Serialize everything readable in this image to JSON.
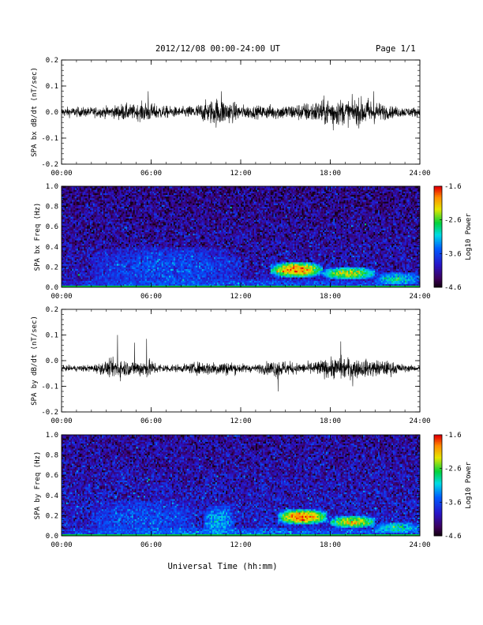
{
  "header": {
    "title": "2012/12/08  00:00-24:00 UT",
    "page": "Page 1/1"
  },
  "footer": {
    "xlabel": "Universal Time (hh:mm)"
  },
  "chart_data": [
    {
      "type": "line",
      "ylabel": "SPA bx dB/dt (nT/sec)",
      "xlim": [
        0,
        24
      ],
      "ylim": [
        -0.2,
        0.2
      ],
      "xticks": [
        "00:00",
        "06:00",
        "12:00",
        "18:00",
        "24:00"
      ],
      "yticks": [
        "-0.2",
        "-0.1",
        "0.0",
        "0.1",
        "0.2"
      ],
      "baseline": 0.0,
      "envelope": {
        "x": [
          0,
          2,
          3.5,
          4,
          5,
          5.7,
          6,
          7,
          8,
          9,
          10,
          10.5,
          11,
          12,
          13,
          14,
          15,
          16,
          17,
          18,
          19,
          20,
          20.5,
          21,
          22,
          23,
          24
        ],
        "amp": [
          0.02,
          0.02,
          0.025,
          0.035,
          0.03,
          0.045,
          0.035,
          0.025,
          0.02,
          0.03,
          0.05,
          0.06,
          0.05,
          0.03,
          0.025,
          0.03,
          0.03,
          0.035,
          0.045,
          0.06,
          0.05,
          0.055,
          0.06,
          0.045,
          0.025,
          0.02,
          0.02
        ]
      },
      "spikes": [
        {
          "x": 5.8,
          "y": 0.08
        },
        {
          "x": 10.7,
          "y": 0.08
        },
        {
          "x": 18.2,
          "y": -0.07
        },
        {
          "x": 20.9,
          "y": 0.08
        }
      ]
    },
    {
      "type": "heatmap",
      "ylabel": "SPA bx Freq (Hz)",
      "xlim": [
        0,
        24
      ],
      "ylim": [
        0,
        1.0
      ],
      "xticks": [
        "00:00",
        "06:00",
        "12:00",
        "18:00",
        "24:00"
      ],
      "yticks": [
        "0.0",
        "0.2",
        "0.4",
        "0.6",
        "0.8",
        "1.0"
      ],
      "colorbar": {
        "min": -4.6,
        "max": -1.6,
        "ticks": [
          "-1.6",
          "-2.6",
          "-3.6",
          "-4.6"
        ],
        "label": "Log10 Power"
      },
      "background_level": -4.1,
      "features": [
        {
          "t0": 0,
          "t1": 24,
          "f0": 0.0,
          "f1": 0.08,
          "level": -3.6
        },
        {
          "t0": 14,
          "t1": 17.5,
          "f0": 0.1,
          "f1": 0.25,
          "level": -1.9
        },
        {
          "t0": 17.5,
          "t1": 21,
          "f0": 0.08,
          "f1": 0.2,
          "level": -2.3
        },
        {
          "t0": 21,
          "t1": 24,
          "f0": 0.03,
          "f1": 0.15,
          "level": -3.0
        },
        {
          "t0": 2,
          "t1": 12,
          "f0": 0.0,
          "f1": 0.4,
          "level": -3.6
        }
      ]
    },
    {
      "type": "line",
      "ylabel": "SPA by dB/dt (nT/sec)",
      "xlim": [
        0,
        24
      ],
      "ylim": [
        -0.2,
        0.2
      ],
      "xticks": [
        "00:00",
        "06:00",
        "12:00",
        "18:00",
        "24:00"
      ],
      "yticks": [
        "-0.2",
        "-0.1",
        "0.0",
        "0.1",
        "0.2"
      ],
      "baseline": -0.03,
      "envelope": {
        "x": [
          0,
          2,
          3,
          3.8,
          4.5,
          5.8,
          6.5,
          8,
          9,
          10,
          11,
          12,
          13,
          14,
          14.5,
          15,
          16,
          17,
          18,
          18.7,
          19.5,
          20.5,
          21,
          22,
          23,
          24
        ],
        "amp": [
          0.01,
          0.015,
          0.03,
          0.045,
          0.03,
          0.04,
          0.02,
          0.015,
          0.025,
          0.03,
          0.03,
          0.02,
          0.015,
          0.03,
          0.04,
          0.03,
          0.02,
          0.03,
          0.04,
          0.05,
          0.04,
          0.035,
          0.035,
          0.03,
          0.015,
          0.01
        ]
      },
      "spikes": [
        {
          "x": 3.75,
          "y": 0.1
        },
        {
          "x": 5.7,
          "y": 0.085
        },
        {
          "x": 4.9,
          "y": 0.07
        },
        {
          "x": 14.5,
          "y": -0.12
        },
        {
          "x": 18.7,
          "y": 0.075
        },
        {
          "x": 19.5,
          "y": -0.1
        }
      ]
    },
    {
      "type": "heatmap",
      "ylabel": "SPA by Freq (Hz)",
      "xlim": [
        0,
        24
      ],
      "ylim": [
        0,
        1.0
      ],
      "xticks": [
        "00:00",
        "06:00",
        "12:00",
        "18:00",
        "24:00"
      ],
      "yticks": [
        "0.0",
        "0.2",
        "0.4",
        "0.6",
        "0.8",
        "1.0"
      ],
      "colorbar": {
        "min": -4.6,
        "max": -1.6,
        "ticks": [
          "-1.6",
          "-2.6",
          "-3.6",
          "-4.6"
        ],
        "label": "Log10 Power"
      },
      "background_level": -4.0,
      "features": [
        {
          "t0": 0,
          "t1": 24,
          "f0": 0.0,
          "f1": 0.08,
          "level": -3.5
        },
        {
          "t0": 14.5,
          "t1": 17.8,
          "f0": 0.12,
          "f1": 0.26,
          "level": -1.8
        },
        {
          "t0": 18,
          "t1": 21,
          "f0": 0.08,
          "f1": 0.2,
          "level": -2.2
        },
        {
          "t0": 21,
          "t1": 24,
          "f0": 0.03,
          "f1": 0.14,
          "level": -3.0
        },
        {
          "t0": 9.5,
          "t1": 11.5,
          "f0": 0.0,
          "f1": 0.3,
          "level": -3.2
        },
        {
          "t0": 2,
          "t1": 9,
          "f0": 0.0,
          "f1": 0.35,
          "level": -3.6
        }
      ]
    }
  ]
}
